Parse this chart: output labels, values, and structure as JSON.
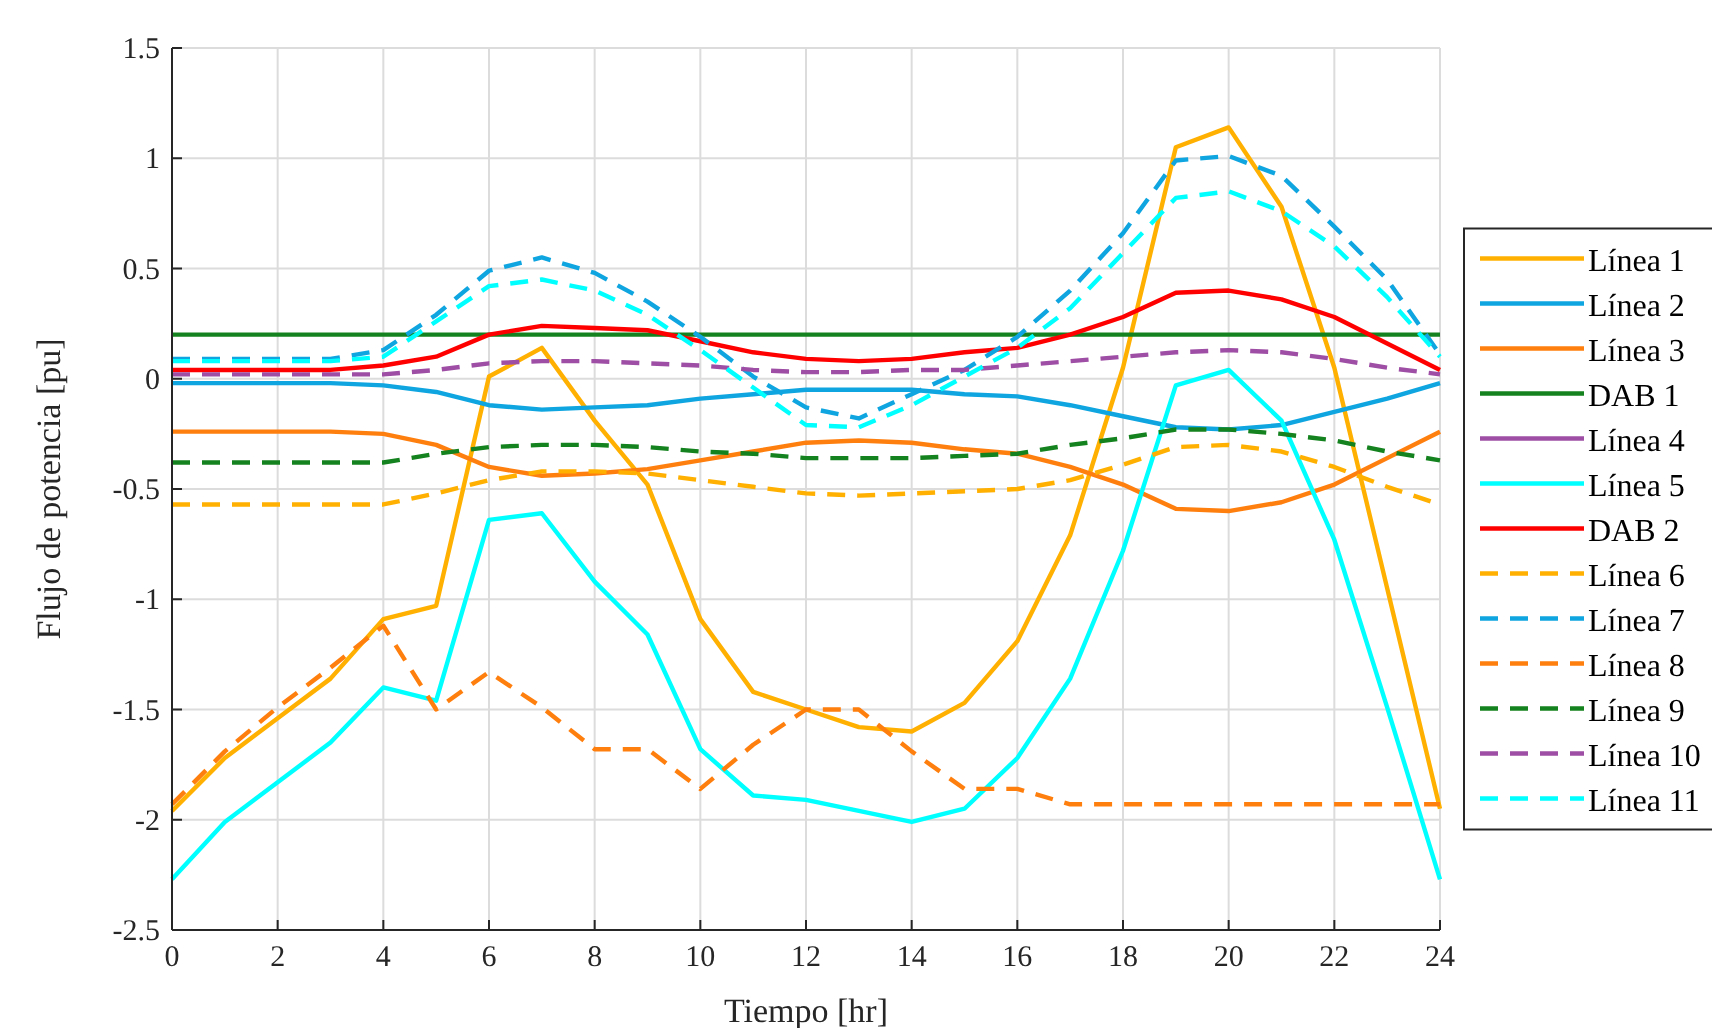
{
  "chart_data": {
    "type": "line",
    "xlabel": "Tiempo [hr]",
    "ylabel": "Flujo de potencia [pu]",
    "x": [
      0,
      1,
      2,
      3,
      4,
      5,
      6,
      7,
      8,
      9,
      10,
      11,
      12,
      13,
      14,
      15,
      16,
      17,
      18,
      19,
      20,
      21,
      22,
      23,
      24
    ],
    "xlim": [
      0,
      24
    ],
    "xticks": [
      0,
      2,
      4,
      6,
      8,
      10,
      12,
      14,
      16,
      18,
      20,
      22,
      24
    ],
    "ylim": [
      -2.5,
      1.5
    ],
    "yticks": [
      -2.5,
      -2,
      -1.5,
      -1,
      -0.5,
      0,
      0.5,
      1,
      1.5
    ],
    "grid": true,
    "legend": "right",
    "marker": "none",
    "series": [
      {
        "name": "Línea 1",
        "color": "#ffb000",
        "line_style": "solid",
        "values": [
          -1.96,
          -1.72,
          -1.54,
          -1.36,
          -1.09,
          -1.03,
          0.01,
          0.14,
          -0.19,
          -0.48,
          -1.09,
          -1.42,
          -1.5,
          -1.58,
          -1.6,
          -1.47,
          -1.19,
          -0.71,
          0.05,
          1.05,
          1.14,
          0.78,
          0.05,
          -0.95,
          -1.95
        ]
      },
      {
        "name": "Línea 2",
        "color": "#0fa5e0",
        "line_style": "solid",
        "values": [
          -0.02,
          -0.02,
          -0.02,
          -0.02,
          -0.03,
          -0.06,
          -0.12,
          -0.14,
          -0.13,
          -0.12,
          -0.09,
          -0.07,
          -0.05,
          -0.05,
          -0.05,
          -0.07,
          -0.08,
          -0.12,
          -0.17,
          -0.22,
          -0.23,
          -0.21,
          -0.15,
          -0.09,
          -0.02
        ]
      },
      {
        "name": "Línea 3",
        "color": "#ff7f0e",
        "line_style": "solid",
        "values": [
          -0.24,
          -0.24,
          -0.24,
          -0.24,
          -0.25,
          -0.3,
          -0.4,
          -0.44,
          -0.43,
          -0.41,
          -0.37,
          -0.33,
          -0.29,
          -0.28,
          -0.29,
          -0.32,
          -0.34,
          -0.4,
          -0.48,
          -0.59,
          -0.6,
          -0.56,
          -0.48,
          -0.36,
          -0.24
        ]
      },
      {
        "name": "DAB 1",
        "color": "#14821e",
        "line_style": "solid",
        "values": [
          0.2,
          0.2,
          0.2,
          0.2,
          0.2,
          0.2,
          0.2,
          0.2,
          0.2,
          0.2,
          0.2,
          0.2,
          0.2,
          0.2,
          0.2,
          0.2,
          0.2,
          0.2,
          0.2,
          0.2,
          0.2,
          0.2,
          0.2,
          0.2,
          0.2
        ]
      },
      {
        "name": "Línea 4",
        "color": "#9e4fa5",
        "line_style": "solid",
        "values": [
          null,
          null,
          null,
          null,
          null,
          null,
          null,
          null,
          null,
          null,
          null,
          null,
          null,
          null,
          null,
          null,
          null,
          null,
          null,
          null,
          null,
          null,
          null,
          null,
          null
        ]
      },
      {
        "name": "Línea 5",
        "color": "#00ffff",
        "line_style": "solid",
        "values": [
          -2.27,
          -2.01,
          -1.83,
          -1.65,
          -1.4,
          -1.46,
          -0.64,
          -0.61,
          -0.92,
          -1.16,
          -1.68,
          -1.89,
          -1.91,
          -1.96,
          -2.01,
          -1.95,
          -1.72,
          -1.36,
          -0.78,
          -0.03,
          0.04,
          -0.19,
          -0.73,
          -1.49,
          -2.27
        ]
      },
      {
        "name": "DAB 2",
        "color": "#ff0000",
        "line_style": "solid",
        "values": [
          0.04,
          0.04,
          0.04,
          0.04,
          0.06,
          0.1,
          0.2,
          0.24,
          0.23,
          0.22,
          0.17,
          0.12,
          0.09,
          0.08,
          0.09,
          0.12,
          0.14,
          0.2,
          0.28,
          0.39,
          0.4,
          0.36,
          0.28,
          0.16,
          0.04
        ]
      },
      {
        "name": "Línea 6",
        "color": "#ffb000",
        "line_style": "dashed",
        "values": [
          -0.57,
          -0.57,
          -0.57,
          -0.57,
          -0.57,
          -0.52,
          -0.46,
          -0.42,
          -0.42,
          -0.43,
          -0.46,
          -0.49,
          -0.52,
          -0.53,
          -0.52,
          -0.51,
          -0.5,
          -0.46,
          -0.39,
          -0.31,
          -0.3,
          -0.33,
          -0.4,
          -0.49,
          -0.57
        ]
      },
      {
        "name": "Línea 7",
        "color": "#0fa5e0",
        "line_style": "dashed",
        "values": [
          0.09,
          0.09,
          0.09,
          0.09,
          0.13,
          0.29,
          0.49,
          0.55,
          0.48,
          0.35,
          0.19,
          0.01,
          -0.13,
          -0.18,
          -0.07,
          0.04,
          0.19,
          0.4,
          0.66,
          0.99,
          1.01,
          0.92,
          0.69,
          0.45,
          0.11
        ]
      },
      {
        "name": "Línea 8",
        "color": "#ff7f0e",
        "line_style": "dashed",
        "values": [
          -1.93,
          -1.69,
          -1.49,
          -1.31,
          -1.12,
          -1.5,
          -1.33,
          -1.49,
          -1.68,
          -1.68,
          -1.86,
          -1.66,
          -1.5,
          -1.5,
          -1.69,
          -1.86,
          -1.86,
          -1.93,
          -1.93,
          -1.93,
          -1.93,
          -1.93,
          -1.93,
          -1.93,
          -1.93
        ]
      },
      {
        "name": "Línea 9",
        "color": "#14821e",
        "line_style": "dashed",
        "values": [
          -0.38,
          -0.38,
          -0.38,
          -0.38,
          -0.38,
          -0.34,
          -0.31,
          -0.3,
          -0.3,
          -0.31,
          -0.33,
          -0.34,
          -0.36,
          -0.36,
          -0.36,
          -0.35,
          -0.34,
          -0.3,
          -0.27,
          -0.23,
          -0.23,
          -0.25,
          -0.28,
          -0.33,
          -0.37
        ]
      },
      {
        "name": "Línea 10",
        "color": "#9e4fa5",
        "line_style": "dashed",
        "values": [
          0.02,
          0.02,
          0.02,
          0.02,
          0.02,
          0.04,
          0.07,
          0.08,
          0.08,
          0.07,
          0.06,
          0.04,
          0.03,
          0.03,
          0.04,
          0.04,
          0.06,
          0.08,
          0.1,
          0.12,
          0.13,
          0.12,
          0.09,
          0.05,
          0.02
        ]
      },
      {
        "name": "Línea 11",
        "color": "#00ffff",
        "line_style": "dashed",
        "values": [
          0.08,
          0.08,
          0.08,
          0.08,
          0.1,
          0.26,
          0.42,
          0.45,
          0.4,
          0.29,
          0.13,
          -0.04,
          -0.21,
          -0.22,
          -0.12,
          0.01,
          0.14,
          0.32,
          0.57,
          0.82,
          0.85,
          0.76,
          0.6,
          0.37,
          0.1
        ]
      }
    ]
  }
}
